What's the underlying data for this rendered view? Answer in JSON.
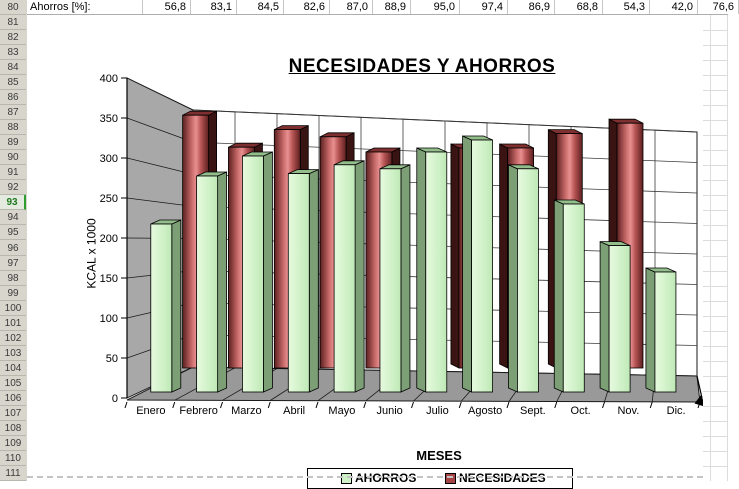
{
  "spreadsheet": {
    "summary_row": {
      "row_number": "80",
      "label": "Ahorros [%]:",
      "values": [
        "56,8",
        "83,1",
        "84,5",
        "82,6",
        "87,0",
        "88,9",
        "95,0",
        "97,4",
        "86,9",
        "68,8",
        "54,3",
        "42,0",
        "76,6"
      ]
    },
    "row_numbers": [
      "80",
      "81",
      "82",
      "83",
      "84",
      "85",
      "86",
      "87",
      "88",
      "89",
      "90",
      "91",
      "92",
      "93",
      "94",
      "95",
      "96",
      "97",
      "98",
      "99",
      "100",
      "101",
      "102",
      "103",
      "104",
      "105",
      "106",
      "107",
      "108",
      "109",
      "110",
      "111"
    ],
    "selected_row": "93"
  },
  "chart_data": {
    "type": "bar",
    "variant": "3d-column",
    "title": "NECESIDADES Y AHORROS",
    "xlabel": "MESES",
    "ylabel": "KCAL x 1000",
    "ylim": [
      0,
      400
    ],
    "ytick_step": 50,
    "grid": true,
    "legend_position": "bottom",
    "categories": [
      "Enero",
      "Febrero",
      "Marzo",
      "Abril",
      "Mayo",
      "Junio",
      "Julio",
      "Agosto",
      "Sept.",
      "Oct.",
      "Nov.",
      "Dic."
    ],
    "series": [
      {
        "name": "AHORROS",
        "color": "#cff1c7",
        "values": [
          210,
          270,
          295,
          273,
          284,
          279,
          300,
          315,
          279,
          235,
          183,
          150
        ]
      },
      {
        "name": "NECESIDADES",
        "color": "#a64444",
        "values": [
          null,
          316,
          276,
          298,
          289,
          270,
          null,
          275,
          275,
          293,
          306,
          null
        ]
      }
    ]
  },
  "colors": {
    "wall": "#a8a8a8",
    "floor": "#999999",
    "green_face": "#cff1c7",
    "green_side": "#7d9f76",
    "green_top": "#94bd8c",
    "red_dark": "#5c1f1f",
    "red_light": "#e89090",
    "red_side": "#3a1313",
    "red_top": "#7e3030",
    "selected_row_green": "#1d7a1d"
  }
}
